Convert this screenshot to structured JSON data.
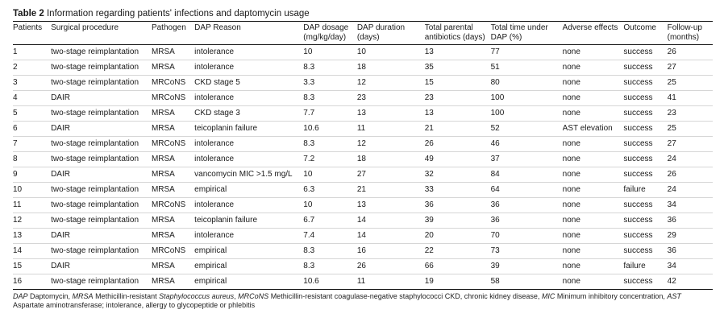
{
  "table_label": "Table 2",
  "table_title": "Information regarding patients' infections and daptomycin usage",
  "headers": [
    "Patients",
    "Surgical procedure",
    "Pathogen",
    "DAP Reason",
    "DAP dosage (mg/kg/day)",
    "DAP duration (days)",
    "Total parental antibiotics (days)",
    "Total time under DAP (%)",
    "Adverse effects",
    "Outcome",
    "Follow-up (months)"
  ],
  "rows": [
    [
      "1",
      "two-stage reimplantation",
      "MRSA",
      "intolerance",
      "10",
      "10",
      "13",
      "77",
      "none",
      "success",
      "26"
    ],
    [
      "2",
      "two-stage reimplantation",
      "MRSA",
      "intolerance",
      "8.3",
      "18",
      "35",
      "51",
      "none",
      "success",
      "27"
    ],
    [
      "3",
      "two-stage reimplantation",
      "MRCoNS",
      "CKD stage 5",
      "3.3",
      "12",
      "15",
      "80",
      "none",
      "success",
      "25"
    ],
    [
      "4",
      "DAIR",
      "MRCoNS",
      "intolerance",
      "8.3",
      "23",
      "23",
      "100",
      "none",
      "success",
      "41"
    ],
    [
      "5",
      "two-stage reimplantation",
      "MRSA",
      "CKD stage 3",
      "7.7",
      "13",
      "13",
      "100",
      "none",
      "success",
      "23"
    ],
    [
      "6",
      "DAIR",
      "MRSA",
      "teicoplanin failure",
      "10.6",
      "11",
      "21",
      "52",
      "AST elevation",
      "success",
      "25"
    ],
    [
      "7",
      "two-stage reimplantation",
      "MRCoNS",
      "intolerance",
      "8.3",
      "12",
      "26",
      "46",
      "none",
      "success",
      "27"
    ],
    [
      "8",
      "two-stage reimplantation",
      "MRSA",
      "intolerance",
      "7.2",
      "18",
      "49",
      "37",
      "none",
      "success",
      "24"
    ],
    [
      "9",
      "DAIR",
      "MRSA",
      "vancomycin MIC >1.5 mg/L",
      "10",
      "27",
      "32",
      "84",
      "none",
      "success",
      "26"
    ],
    [
      "10",
      "two-stage reimplantation",
      "MRSA",
      "empirical",
      "6.3",
      "21",
      "33",
      "64",
      "none",
      "failure",
      "24"
    ],
    [
      "11",
      "two-stage reimplantation",
      "MRCoNS",
      "intolerance",
      "10",
      "13",
      "36",
      "36",
      "none",
      "success",
      "34"
    ],
    [
      "12",
      "two-stage reimplantation",
      "MRSA",
      "teicoplanin failure",
      "6.7",
      "14",
      "39",
      "36",
      "none",
      "success",
      "36"
    ],
    [
      "13",
      "DAIR",
      "MRSA",
      "intolerance",
      "7.4",
      "14",
      "20",
      "70",
      "none",
      "success",
      "29"
    ],
    [
      "14",
      "two-stage reimplantation",
      "MRCoNS",
      "empirical",
      "8.3",
      "16",
      "22",
      "73",
      "none",
      "success",
      "36"
    ],
    [
      "15",
      "DAIR",
      "MRSA",
      "empirical",
      "8.3",
      "26",
      "66",
      "39",
      "none",
      "failure",
      "34"
    ],
    [
      "16",
      "two-stage reimplantation",
      "MRSA",
      "empirical",
      "10.6",
      "11",
      "19",
      "58",
      "none",
      "success",
      "42"
    ]
  ],
  "footnote": [
    {
      "text": "DAP",
      "italic": true
    },
    {
      "text": " Daptomycin, ",
      "italic": false
    },
    {
      "text": "MRSA",
      "italic": true
    },
    {
      "text": " Methicillin-resistant ",
      "italic": false
    },
    {
      "text": "Staphylococcus aureus",
      "italic": true
    },
    {
      "text": ", ",
      "italic": false
    },
    {
      "text": "MRCoNS",
      "italic": true
    },
    {
      "text": " Methicillin-resistant coagulase-negative staphylococci CKD, chronic kidney disease, ",
      "italic": false
    },
    {
      "text": "MIC",
      "italic": true
    },
    {
      "text": " Minimum inhibitory concentration, ",
      "italic": false
    },
    {
      "text": "AST",
      "italic": true
    },
    {
      "text": " Aspartate aminotransferase; intolerance, allergy to glycopeptide or phlebitis",
      "italic": false
    }
  ]
}
